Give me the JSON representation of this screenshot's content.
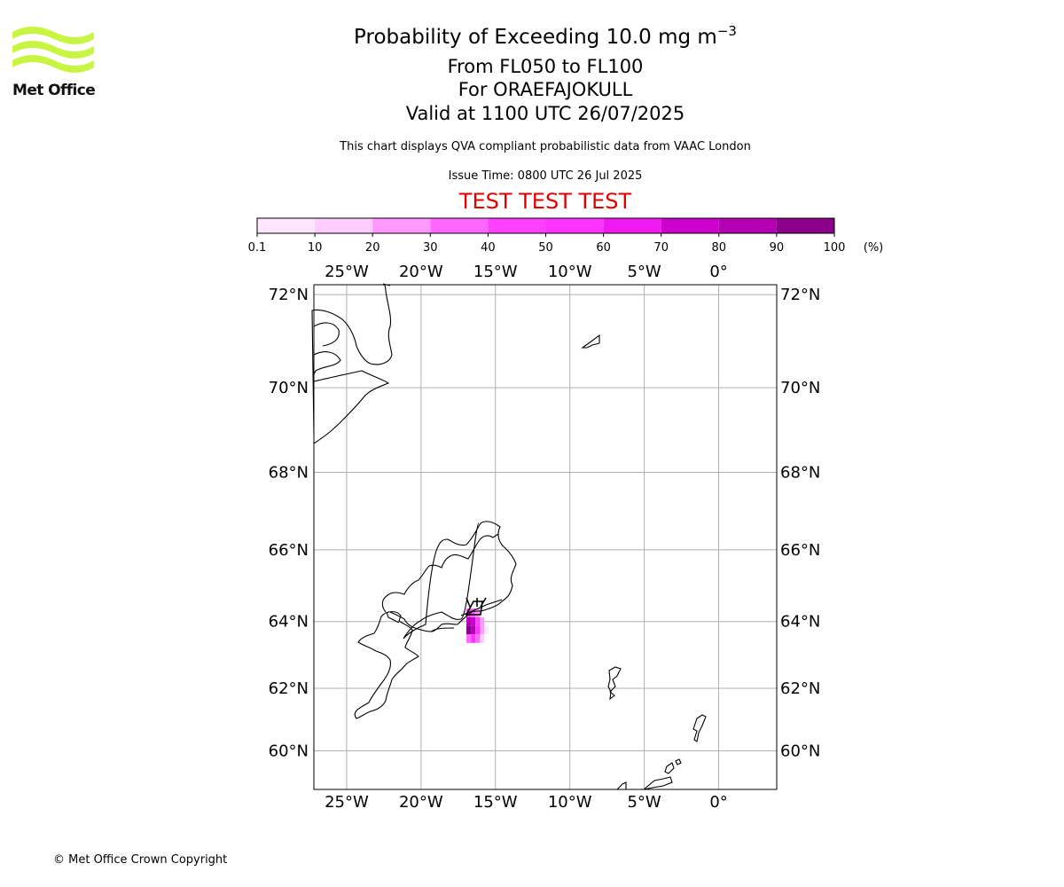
{
  "branding": {
    "logo_text": "Met Office",
    "logo_color": "#c8f542",
    "copyright": "© Met Office Crown Copyright"
  },
  "header": {
    "title_main": "Probability of Exceeding 10.0 mg m",
    "title_exponent": "−3",
    "level_range": "From FL050 to FL100",
    "volcano": "For ORAEFAJOKULL",
    "valid_time": "Valid at 1100 UTC 26/07/2025",
    "disclaimer": "This chart displays QVA compliant probabilistic data from VAAC London",
    "issue_time": "Issue Time: 0800 UTC 26 Jul 2025",
    "test_banner": "TEST TEST TEST",
    "test_banner_color": "#e00000"
  },
  "colorbar": {
    "ticks": [
      "0.1",
      "10",
      "20",
      "30",
      "40",
      "50",
      "60",
      "70",
      "80",
      "90",
      "100"
    ],
    "unit": "(%)",
    "colors": [
      "#ffe6ff",
      "#ffccff",
      "#ff99ff",
      "#ff66ff",
      "#ff40ff",
      "#ff33ff",
      "#f01af0",
      "#cc00cc",
      "#b300b3",
      "#8a008a",
      "#660066"
    ]
  },
  "map": {
    "lon_labels": [
      "25°W",
      "20°W",
      "15°W",
      "10°W",
      "5°W",
      "0°"
    ],
    "lat_labels": [
      "72°N",
      "70°N",
      "68°N",
      "66°N",
      "64°N",
      "62°N",
      "60°N"
    ],
    "lon_values": [
      -25,
      -20,
      -15,
      -10,
      -5,
      0
    ],
    "lat_values": [
      72,
      70,
      68,
      66,
      64,
      62,
      60
    ],
    "lon_range": [
      -27.2,
      3.9
    ],
    "lat_range": [
      58.7,
      72.2
    ],
    "grid_color": "#b0b0b0",
    "plume": [
      {
        "lon": -16.8,
        "lat": 64.25,
        "prob": 40
      },
      {
        "lon": -16.5,
        "lat": 64.25,
        "prob": 30
      },
      {
        "lon": -16.2,
        "lat": 64.25,
        "prob": 20
      },
      {
        "lon": -16.8,
        "lat": 64.0,
        "prob": 85
      },
      {
        "lon": -16.5,
        "lat": 64.0,
        "prob": 70
      },
      {
        "lon": -16.2,
        "lat": 64.0,
        "prob": 45
      },
      {
        "lon": -15.9,
        "lat": 64.0,
        "prob": 25
      },
      {
        "lon": -16.8,
        "lat": 63.75,
        "prob": 95
      },
      {
        "lon": -16.5,
        "lat": 63.75,
        "prob": 80
      },
      {
        "lon": -16.2,
        "lat": 63.75,
        "prob": 55
      },
      {
        "lon": -15.9,
        "lat": 63.75,
        "prob": 20
      },
      {
        "lon": -15.6,
        "lat": 63.75,
        "prob": 5
      },
      {
        "lon": -16.8,
        "lat": 63.5,
        "prob": 35
      },
      {
        "lon": -16.5,
        "lat": 63.5,
        "prob": 50
      },
      {
        "lon": -16.2,
        "lat": 63.5,
        "prob": 30
      },
      {
        "lon": -15.9,
        "lat": 63.5,
        "prob": 10
      }
    ]
  }
}
